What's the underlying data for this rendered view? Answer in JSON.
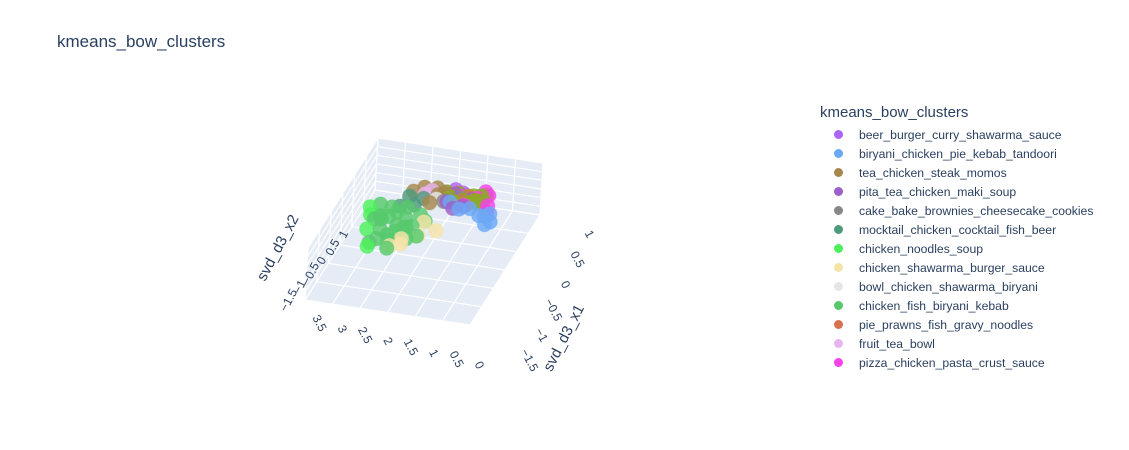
{
  "chart_data": {
    "type": "scatter",
    "title": "kmeans_bow_clusters",
    "axes": {
      "x1": {
        "label": "svd_d3_x1",
        "ticks": [
          "1",
          "0.5",
          "0",
          "−0.5",
          "−1",
          "−1.5"
        ]
      },
      "x2": {
        "label": "svd_d3_x2",
        "ticks": [
          "1",
          "0.5",
          "0",
          "−0.5",
          "−1",
          "−1.5"
        ]
      },
      "x0": {
        "label": "",
        "ticks": [
          "3.5",
          "3",
          "2.5",
          "2",
          "1.5",
          "1",
          "0.5",
          "0"
        ]
      }
    },
    "legend": {
      "title": "kmeans_bow_clusters",
      "placement": "right",
      "entries": [
        {
          "name": "beer_burger_curry_shawarma_sauce",
          "color": "#ab63fa"
        },
        {
          "name": "biryani_chicken_pie_kebab_tandoori",
          "color": "#6ba8f5"
        },
        {
          "name": "tea_chicken_steak_momos",
          "color": "#a6874e"
        },
        {
          "name": "pita_tea_chicken_maki_soup",
          "color": "#9f5fc8"
        },
        {
          "name": "cake_bake_brownies_cheesecake_cookies",
          "color": "#888888"
        },
        {
          "name": "mocktail_chicken_cocktail_fish_beer",
          "color": "#4f9a7c"
        },
        {
          "name": "chicken_noodles_soup",
          "color": "#4cf05a"
        },
        {
          "name": "chicken_shawarma_burger_sauce",
          "color": "#f6e3a8"
        },
        {
          "name": "bowl_chicken_shawarma_biryani",
          "color": "#e6e6e6"
        },
        {
          "name": "chicken_fish_biryani_kebab",
          "color": "#57c96c"
        },
        {
          "name": "pie_prawns_fish_gravy_noodles",
          "color": "#d9704e"
        },
        {
          "name": "fruit_tea_bowl",
          "color": "#e9b3ee"
        },
        {
          "name": "pizza_chicken_pasta_crust_sauce",
          "color": "#f542ec"
        }
      ]
    },
    "series": [
      {
        "cluster": 12,
        "points": [
          [
            0.0,
            0.6,
            0.2
          ],
          [
            0.1,
            0.7,
            0.1
          ],
          [
            0.3,
            0.5,
            0.1
          ],
          [
            0.5,
            0.8,
            0.0
          ],
          [
            0.7,
            0.3,
            0.1
          ],
          [
            0.9,
            0.9,
            0.2
          ],
          [
            0.2,
            0.2,
            0.0
          ]
        ]
      },
      {
        "cluster": 1,
        "points": [
          [
            1.1,
            0.9,
            0.2
          ],
          [
            1.0,
            1.0,
            0.3
          ],
          [
            1.3,
            1.1,
            0.2
          ],
          [
            1.2,
            0.8,
            0.4
          ],
          [
            0.9,
            0.5,
            0.3
          ],
          [
            0.8,
            0.0,
            0.4
          ],
          [
            1.1,
            0.3,
            0.5
          ],
          [
            1.4,
            1.0,
            0.1
          ]
        ]
      },
      {
        "cluster": 3,
        "points": [
          [
            0.6,
            0.1,
            0.3
          ],
          [
            0.8,
            0.3,
            0.2
          ],
          [
            0.4,
            0.0,
            0.4
          ],
          [
            0.7,
            -0.1,
            0.2
          ],
          [
            0.5,
            0.4,
            0.3
          ],
          [
            0.9,
            0.1,
            0.1
          ]
        ]
      },
      {
        "cluster": 10,
        "points": [
          [
            0.3,
            0.3,
            0.1
          ],
          [
            0.4,
            0.5,
            0.1
          ],
          [
            0.2,
            0.0,
            0.1
          ],
          [
            0.5,
            0.2,
            0.0
          ]
        ]
      },
      {
        "cluster": 2,
        "points": [
          [
            0.2,
            -0.3,
            0.0
          ],
          [
            0.4,
            -0.4,
            0.1
          ],
          [
            0.3,
            -0.2,
            0.0
          ],
          [
            0.1,
            -0.5,
            0.1
          ]
        ]
      },
      {
        "cluster": 9,
        "points": [
          [
            1.5,
            -0.8,
            -0.2
          ],
          [
            1.7,
            -0.6,
            -0.4
          ],
          [
            1.9,
            -0.9,
            -0.1
          ],
          [
            2.1,
            -0.7,
            0.1
          ],
          [
            2.3,
            -1.0,
            -0.3
          ],
          [
            2.5,
            -0.5,
            0.0
          ],
          [
            1.3,
            -1.2,
            0.2
          ],
          [
            1.8,
            -1.3,
            0.0
          ],
          [
            2.0,
            -0.4,
            -0.6
          ],
          [
            2.4,
            -0.8,
            0.3
          ],
          [
            1.6,
            -1.0,
            0.4
          ],
          [
            2.2,
            -1.2,
            -0.1
          ],
          [
            1.4,
            -0.5,
            0.1
          ],
          [
            2.6,
            -0.9,
            -0.2
          ],
          [
            1.1,
            -0.9,
            0.0
          ],
          [
            2.8,
            -1.1,
            0.2
          ],
          [
            1.9,
            -1.1,
            0.5
          ],
          [
            2.2,
            -0.6,
            0.4
          ],
          [
            1.5,
            -1.4,
            -0.3
          ],
          [
            2.0,
            -1.4,
            0.3
          ],
          [
            3.0,
            -0.8,
            -0.1
          ],
          [
            1.2,
            -1.5,
            0.1
          ],
          [
            2.7,
            -1.3,
            -0.4
          ],
          [
            1.7,
            -0.3,
            0.2
          ]
        ]
      },
      {
        "cluster": 6,
        "points": [
          [
            2.0,
            -1.5,
            0.6
          ],
          [
            2.6,
            -1.4,
            0.5
          ],
          [
            3.2,
            -1.2,
            0.2
          ],
          [
            1.7,
            -1.6,
            0.7
          ]
        ]
      },
      {
        "cluster": 7,
        "points": [
          [
            3.5,
            -0.6,
            1.1
          ],
          [
            3.3,
            -0.4,
            1.0
          ],
          [
            2.6,
            -0.2,
            0.6
          ],
          [
            2.2,
            0.1,
            0.5
          ],
          [
            1.8,
            -0.3,
            0.3
          ],
          [
            2.9,
            -0.5,
            0.7
          ]
        ]
      },
      {
        "cluster": 5,
        "points": [
          [
            0.5,
            -0.7,
            -0.2
          ],
          [
            0.9,
            -0.8,
            -0.1
          ],
          [
            0.6,
            -1.0,
            0.0
          ],
          [
            1.0,
            -1.1,
            -0.2
          ]
        ]
      },
      {
        "cluster": 2,
        "points": [
          [
            0.3,
            -1.0,
            -0.1
          ],
          [
            0.1,
            -0.8,
            0.0
          ],
          [
            0.7,
            -0.5,
            -0.1
          ]
        ]
      },
      {
        "cluster": 0,
        "points": [
          [
            0.0,
            -0.1,
            0.0
          ],
          [
            0.1,
            0.1,
            0.0
          ]
        ]
      },
      {
        "cluster": 11,
        "points": [
          [
            0.2,
            -0.6,
            0.0
          ],
          [
            0.4,
            -0.7,
            0.0
          ]
        ]
      },
      {
        "cluster": 4,
        "points": [
          [
            0.3,
            0.1,
            -0.1
          ],
          [
            0.6,
            -0.2,
            0.0
          ]
        ]
      },
      {
        "cluster": 8,
        "points": [
          [
            0.5,
            -0.4,
            -0.1
          ]
        ]
      },
      {
        "cluster": 13,
        "points": [
          [
            0.0,
            0.2,
            -0.4
          ],
          [
            0.2,
            0.4,
            -0.3
          ],
          [
            0.1,
            -0.2,
            -0.5
          ],
          [
            0.3,
            0.3,
            -0.4
          ],
          [
            0.0,
            0.5,
            -0.2
          ],
          [
            0.4,
            0.0,
            -0.3
          ],
          [
            -0.1,
            0.3,
            -0.5
          ],
          [
            0.2,
            0.6,
            -0.2
          ],
          [
            0.1,
            0.1,
            -0.6
          ],
          [
            0.3,
            -0.1,
            -0.4
          ],
          [
            0.5,
            0.3,
            -0.2
          ],
          [
            0.0,
            0.0,
            -0.3
          ],
          [
            0.2,
            0.2,
            -0.7
          ],
          [
            -0.1,
            0.6,
            -0.3
          ],
          [
            0.4,
            0.5,
            -0.1
          ],
          [
            0.1,
            0.4,
            -0.5
          ],
          [
            0.3,
            0.6,
            -0.3
          ],
          [
            0.0,
            -0.3,
            -0.3
          ]
        ]
      }
    ],
    "extra_colors": {
      "13": "#8fa82a"
    }
  }
}
